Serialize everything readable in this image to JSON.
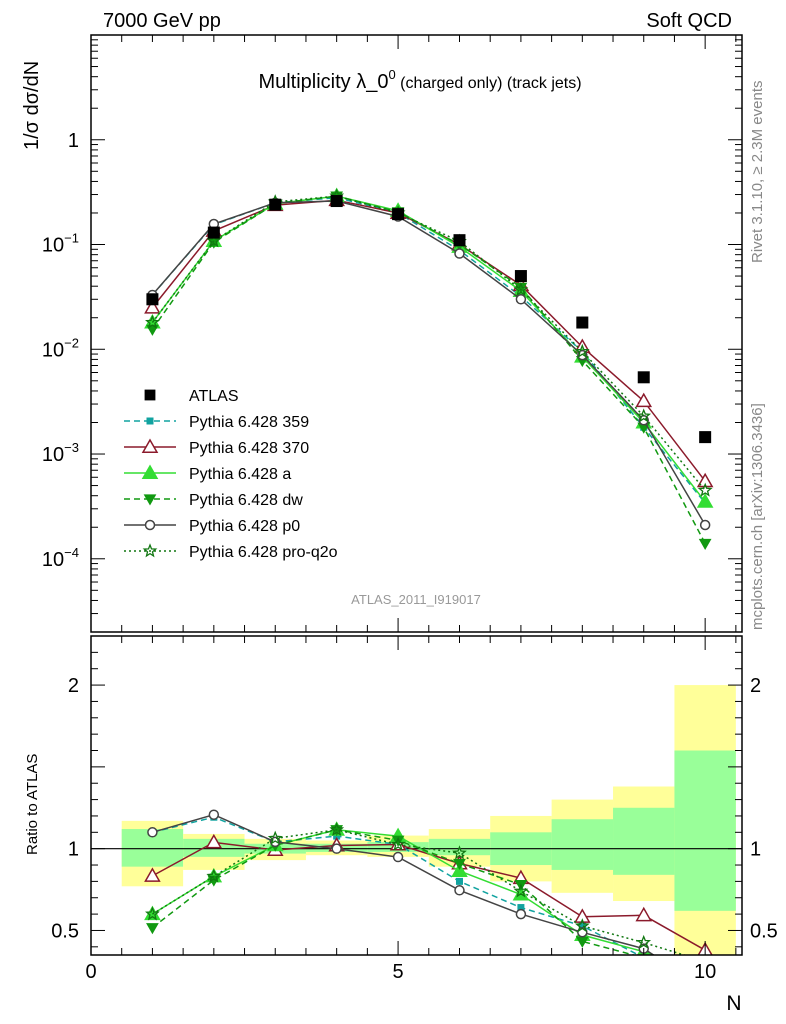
{
  "header": {
    "left": "7000 GeV pp",
    "right": "Soft QCD"
  },
  "side_labels": {
    "top": "Rivet 3.1.10, ≥ 2.3M events",
    "bottom": "mcplots.cern.ch [arXiv:1306.3436]"
  },
  "main_title": {
    "main": "Multiplicity λ_0",
    "sup": "0",
    "rest": " (charged only) (track jets)"
  },
  "watermark": "ATLAS_2011_I919017",
  "ylabel_top": "1/σ dσ/dN",
  "ylabel_bottom": "Ratio to ATLAS",
  "xlabel": "N",
  "legend_labels": [
    "ATLAS",
    "Pythia 6.428 359",
    "Pythia 6.428 370",
    "Pythia 6.428 a",
    "Pythia 6.428 dw",
    "Pythia 6.428 p0",
    "Pythia 6.428 pro-q2o"
  ],
  "chart_data": {
    "type": "line",
    "x_scale_top": "linear",
    "y_scale_top": "log",
    "xlim": [
      0,
      10.6
    ],
    "ylim_top": [
      2e-05,
      10
    ],
    "ylim_ratio": [
      0.35,
      2.3
    ],
    "x": [
      1,
      2,
      3,
      4,
      5,
      6,
      7,
      8,
      9,
      10
    ],
    "x_ticks": [
      {
        "v": 0,
        "label": "0"
      },
      {
        "v": 5,
        "label": "5"
      },
      {
        "v": 10,
        "label": "10"
      }
    ],
    "y_ticks_top": [
      {
        "v": 0.0001,
        "base": "10",
        "exp": "−4"
      },
      {
        "v": 0.001,
        "base": "10",
        "exp": "−3"
      },
      {
        "v": 0.01,
        "base": "10",
        "exp": "−2"
      },
      {
        "v": 0.1,
        "base": "10",
        "exp": "−1"
      },
      {
        "v": 1,
        "base": "1",
        "exp": ""
      }
    ],
    "y_ticks_ratio": [
      {
        "v": 0.5,
        "label": "0.5"
      },
      {
        "v": 1,
        "label": "1"
      },
      {
        "v": 2,
        "label": "2"
      }
    ],
    "reference": {
      "name": "ATLAS",
      "color": "#000000",
      "values": [
        0.03,
        0.13,
        0.24,
        0.26,
        0.195,
        0.11,
        0.05,
        0.018,
        0.0054,
        0.00145
      ]
    },
    "uncertainty_bands": {
      "x_edges": [
        0.5,
        1.5,
        2.5,
        3.5,
        4.5,
        5.5,
        6.5,
        7.5,
        8.5,
        9.5,
        10.5
      ],
      "green_color": "#99ff99",
      "yellow_color": "#ffff99",
      "green_lo": [
        0.89,
        0.95,
        0.97,
        0.98,
        0.98,
        0.96,
        0.9,
        0.87,
        0.84,
        0.62
      ],
      "green_hi": [
        1.12,
        1.06,
        1.03,
        1.03,
        1.04,
        1.06,
        1.1,
        1.18,
        1.25,
        1.6
      ],
      "yellow_lo": [
        0.77,
        0.87,
        0.93,
        0.96,
        0.95,
        0.89,
        0.8,
        0.73,
        0.68,
        0.35
      ],
      "yellow_hi": [
        1.17,
        1.09,
        1.06,
        1.05,
        1.08,
        1.12,
        1.2,
        1.3,
        1.38,
        2.0
      ]
    },
    "series": [
      {
        "name": "Pythia 6.428 359",
        "color": "#11a3a0",
        "dash": "6,4",
        "marker": "square-small",
        "values": [
          0.033,
          0.155,
          0.25,
          0.28,
          0.2,
          0.088,
          0.032,
          0.0095,
          0.0018,
          0.00034
        ]
      },
      {
        "name": "Pythia 6.428 370",
        "color": "#8b1a2b",
        "dash": "",
        "marker": "triangle-open",
        "values": [
          0.025,
          0.135,
          0.238,
          0.265,
          0.2,
          0.1,
          0.041,
          0.0105,
          0.0032,
          0.00055
        ]
      },
      {
        "name": "Pythia 6.428 a",
        "color": "#33dd33",
        "dash": "",
        "marker": "triangle-filled",
        "values": [
          0.018,
          0.108,
          0.245,
          0.29,
          0.21,
          0.095,
          0.036,
          0.0085,
          0.002,
          0.00035
        ]
      },
      {
        "name": "Pythia 6.428 dw",
        "color": "#119911",
        "dash": "6,4",
        "marker": "triangle-down-filled",
        "values": [
          0.0155,
          0.105,
          0.245,
          0.29,
          0.205,
          0.1,
          0.039,
          0.0078,
          0.0018,
          0.00014
        ]
      },
      {
        "name": "Pythia 6.428 p0",
        "color": "#444444",
        "dash": "",
        "marker": "circle-open",
        "values": [
          0.033,
          0.157,
          0.25,
          0.26,
          0.185,
          0.082,
          0.03,
          0.0088,
          0.0021,
          0.00021
        ]
      },
      {
        "name": "Pythia 6.428 pro-q2o",
        "color": "#117711",
        "dash": "2,3",
        "marker": "star-open",
        "values": [
          0.018,
          0.108,
          0.255,
          0.29,
          0.2,
          0.107,
          0.037,
          0.0095,
          0.0023,
          0.00045
        ]
      }
    ]
  }
}
